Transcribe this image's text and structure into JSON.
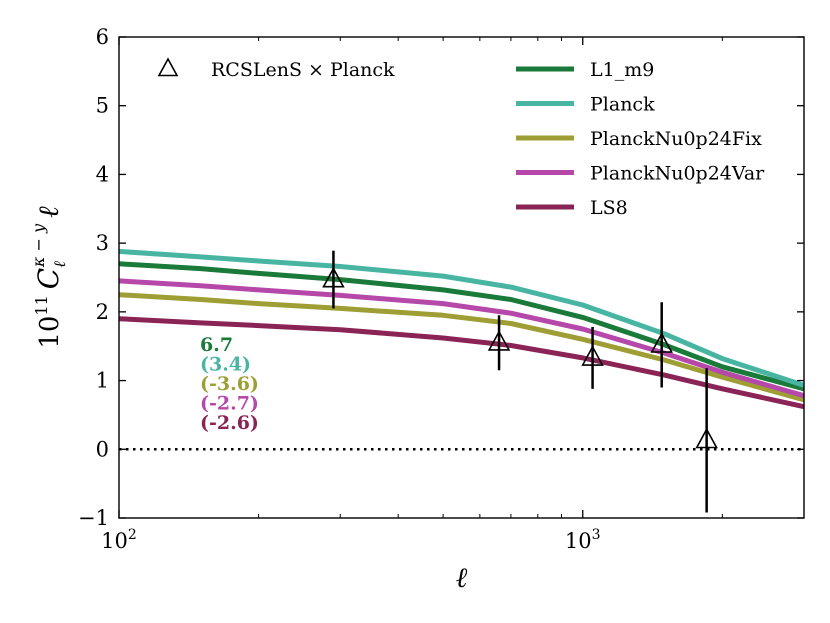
{
  "chart_data": {
    "type": "line",
    "xscale": "log",
    "xlim": [
      100,
      3000
    ],
    "ylim": [
      -1,
      6
    ],
    "xlabel": "ℓ",
    "ylabel": "10^11 C_ℓ^{κ−y} ℓ",
    "ylabel_parts": {
      "prefix": "10",
      "exp": "11",
      "symbol": "C",
      "sub": "ℓ",
      "sup": "κ − y",
      "suffix": "ℓ"
    },
    "yticks": [
      -1,
      0,
      1,
      2,
      3,
      4,
      5,
      6
    ],
    "ytick_labels": [
      "−1",
      "0",
      "1",
      "2",
      "3",
      "4",
      "5",
      "6"
    ],
    "xticks_major": [
      {
        "value": 100,
        "base": "10",
        "exp": "2"
      },
      {
        "value": 1000,
        "base": "10",
        "exp": "3"
      }
    ],
    "zero_line": {
      "y": 0,
      "style": "dotted"
    },
    "series": [
      {
        "name": "L1_m9",
        "color": "#1a7a3a",
        "x": [
          100,
          150,
          200,
          300,
          500,
          700,
          1000,
          1500,
          2000,
          3000
        ],
        "y": [
          2.7,
          2.63,
          2.56,
          2.47,
          2.32,
          2.18,
          1.92,
          1.52,
          1.2,
          0.88
        ]
      },
      {
        "name": "Planck",
        "color": "#48b5a2",
        "x": [
          100,
          150,
          200,
          300,
          500,
          700,
          1000,
          1500,
          2000,
          3000
        ],
        "y": [
          2.88,
          2.8,
          2.74,
          2.66,
          2.52,
          2.36,
          2.1,
          1.68,
          1.32,
          0.93
        ]
      },
      {
        "name": "PlanckNu0p24Fix",
        "color": "#9e9e35",
        "x": [
          100,
          150,
          200,
          300,
          500,
          700,
          1000,
          1500,
          2000,
          3000
        ],
        "y": [
          2.25,
          2.18,
          2.12,
          2.05,
          1.95,
          1.83,
          1.6,
          1.3,
          1.05,
          0.72
        ]
      },
      {
        "name": "PlanckNu0p24Var",
        "color": "#b548a8",
        "x": [
          100,
          150,
          200,
          300,
          500,
          700,
          1000,
          1500,
          2000,
          3000
        ],
        "y": [
          2.45,
          2.38,
          2.32,
          2.24,
          2.12,
          1.98,
          1.75,
          1.4,
          1.12,
          0.78
        ]
      },
      {
        "name": "LS8",
        "color": "#8b2456",
        "x": [
          100,
          150,
          200,
          300,
          500,
          700,
          1000,
          1500,
          2000,
          3000
        ],
        "y": [
          1.9,
          1.84,
          1.8,
          1.74,
          1.62,
          1.51,
          1.33,
          1.08,
          0.88,
          0.62
        ]
      }
    ],
    "data_points": {
      "name": "RCSLenS × Planck",
      "marker": "open-triangle",
      "x": [
        290,
        660,
        1050,
        1480,
        1850
      ],
      "y": [
        2.47,
        1.55,
        1.33,
        1.52,
        0.13
      ],
      "yerr": [
        0.42,
        0.4,
        0.45,
        0.62,
        1.05
      ]
    },
    "legend": {
      "placement": "top"
    },
    "annotations": [
      {
        "text": "6.7",
        "color": "#1a7a3a"
      },
      {
        "text": "(3.4)",
        "color": "#48b5a2"
      },
      {
        "text": "(-3.6)",
        "color": "#9e9e35"
      },
      {
        "text": "(-2.7)",
        "color": "#b548a8"
      },
      {
        "text": "(-2.6)",
        "color": "#8b2456"
      }
    ]
  }
}
